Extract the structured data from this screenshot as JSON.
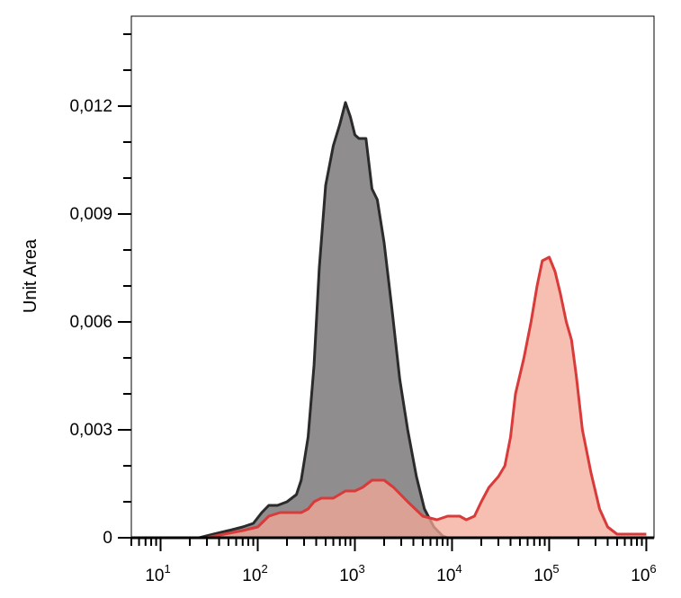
{
  "chart_data": {
    "type": "area",
    "title": "",
    "xlabel": "",
    "ylabel": "Unit Area",
    "x_scale": "log",
    "xlim": [
      5,
      1200000
    ],
    "ylim": [
      0,
      0.0145
    ],
    "x_ticks": [
      {
        "base": "10",
        "exp": "1",
        "value": 10
      },
      {
        "base": "10",
        "exp": "2",
        "value": 100
      },
      {
        "base": "10",
        "exp": "3",
        "value": 1000
      },
      {
        "base": "10",
        "exp": "4",
        "value": 10000
      },
      {
        "base": "10",
        "exp": "5",
        "value": 100000
      },
      {
        "base": "10",
        "exp": "6",
        "value": 1000000
      }
    ],
    "y_ticks": [
      {
        "label": "0",
        "value": 0
      },
      {
        "label": "0,003",
        "value": 0.003
      },
      {
        "label": "0,006",
        "value": 0.006
      },
      {
        "label": "0,009",
        "value": 0.009
      },
      {
        "label": "0,012",
        "value": 0.012
      }
    ],
    "grid": false,
    "series": [
      {
        "color": "#2b2b2b",
        "fill": "#8f8d8d",
        "points": [
          [
            10,
            0
          ],
          [
            25,
            0
          ],
          [
            35,
            0.0001
          ],
          [
            50,
            0.0002
          ],
          [
            70,
            0.0003
          ],
          [
            90,
            0.0004
          ],
          [
            110,
            0.0007
          ],
          [
            130,
            0.0009
          ],
          [
            160,
            0.0009
          ],
          [
            200,
            0.001
          ],
          [
            250,
            0.0012
          ],
          [
            280,
            0.0016
          ],
          [
            330,
            0.0028
          ],
          [
            380,
            0.0048
          ],
          [
            430,
            0.0075
          ],
          [
            500,
            0.0098
          ],
          [
            600,
            0.0109
          ],
          [
            700,
            0.0115
          ],
          [
            800,
            0.0121
          ],
          [
            900,
            0.0117
          ],
          [
            1000,
            0.0112
          ],
          [
            1100,
            0.0111
          ],
          [
            1300,
            0.0111
          ],
          [
            1500,
            0.0097
          ],
          [
            1700,
            0.0094
          ],
          [
            2000,
            0.0082
          ],
          [
            2400,
            0.0064
          ],
          [
            2900,
            0.0044
          ],
          [
            3500,
            0.003
          ],
          [
            4300,
            0.0017
          ],
          [
            5200,
            0.0008
          ],
          [
            6500,
            0.0003
          ],
          [
            8000,
            5e-05
          ],
          [
            9000,
            0
          ]
        ]
      },
      {
        "color": "#d93a3a",
        "fill": "#f4a898",
        "points": [
          [
            10,
            0
          ],
          [
            30,
            0
          ],
          [
            45,
            0.0001
          ],
          [
            70,
            0.0002
          ],
          [
            100,
            0.0003
          ],
          [
            130,
            0.0006
          ],
          [
            170,
            0.0007
          ],
          [
            220,
            0.0007
          ],
          [
            280,
            0.0007
          ],
          [
            330,
            0.0008
          ],
          [
            380,
            0.001
          ],
          [
            450,
            0.0011
          ],
          [
            600,
            0.0011
          ],
          [
            800,
            0.0013
          ],
          [
            1000,
            0.0013
          ],
          [
            1200,
            0.0014
          ],
          [
            1500,
            0.0016
          ],
          [
            2000,
            0.0016
          ],
          [
            2500,
            0.0014
          ],
          [
            3500,
            0.001
          ],
          [
            5000,
            0.0006
          ],
          [
            7000,
            0.0005
          ],
          [
            9000,
            0.0006
          ],
          [
            12000,
            0.0006
          ],
          [
            14000,
            0.0005
          ],
          [
            17000,
            0.0006
          ],
          [
            20000,
            0.001
          ],
          [
            24000,
            0.0014
          ],
          [
            30000,
            0.0017
          ],
          [
            35000,
            0.002
          ],
          [
            40000,
            0.0028
          ],
          [
            45000,
            0.004
          ],
          [
            55000,
            0.005
          ],
          [
            65000,
            0.006
          ],
          [
            75000,
            0.007
          ],
          [
            85000,
            0.0077
          ],
          [
            100000,
            0.0078
          ],
          [
            115000,
            0.0074
          ],
          [
            130000,
            0.0068
          ],
          [
            150000,
            0.006
          ],
          [
            170000,
            0.0055
          ],
          [
            190000,
            0.0045
          ],
          [
            220000,
            0.003
          ],
          [
            270000,
            0.0018
          ],
          [
            330000,
            0.0008
          ],
          [
            400000,
            0.0003
          ],
          [
            500000,
            0.0001
          ],
          [
            1000000,
            0.0001
          ]
        ]
      }
    ]
  }
}
